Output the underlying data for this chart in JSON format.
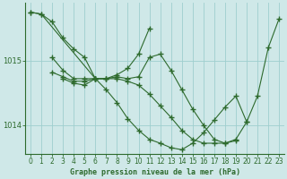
{
  "title": "Graphe pression niveau de la mer (hPa)",
  "background_color": "#cfe8e8",
  "plot_bg_color": "#cfe8e8",
  "line_color": "#2d6a2d",
  "grid_color": "#9ecece",
  "xlim": [
    -0.5,
    23.5
  ],
  "ylim": [
    1013.55,
    1015.9
  ],
  "yticks": [
    1014,
    1015
  ],
  "xticks": [
    0,
    1,
    2,
    3,
    4,
    5,
    6,
    7,
    8,
    9,
    10,
    11,
    12,
    13,
    14,
    15,
    16,
    17,
    18,
    19,
    20,
    21,
    22,
    23
  ],
  "series": [
    {
      "x": [
        0,
        1,
        2,
        3,
        4,
        5,
        6,
        7,
        8,
        9,
        10,
        11
      ],
      "y": [
        1015.75,
        1015.72,
        1015.6,
        1015.35,
        1015.18,
        1015.05,
        1014.72,
        1014.72,
        1014.78,
        1014.88,
        1015.1,
        1015.5
      ]
    },
    {
      "x": [
        2,
        3,
        4,
        5,
        6,
        7,
        8,
        9,
        10,
        11,
        12,
        13,
        14,
        15,
        16,
        17,
        18,
        19
      ],
      "y": [
        1015.05,
        1014.85,
        1014.72,
        1014.72,
        1014.72,
        1014.72,
        1014.72,
        1014.68,
        1014.62,
        1014.48,
        1014.3,
        1014.12,
        1013.92,
        1013.78,
        1013.72,
        1013.72,
        1013.72,
        1013.76
      ]
    },
    {
      "x": [
        2,
        3,
        4,
        5,
        6,
        7,
        8,
        9,
        10,
        11,
        12,
        13,
        14,
        15,
        16,
        17,
        18,
        19,
        20,
        21,
        22,
        23
      ],
      "y": [
        1014.82,
        1014.75,
        1014.68,
        1014.68,
        1014.72,
        1014.72,
        1014.75,
        1014.72,
        1014.75,
        1015.05,
        1015.1,
        1014.85,
        1014.55,
        1014.25,
        1014.0,
        1013.78,
        1013.72,
        1013.78,
        1014.05,
        1014.45,
        1015.2,
        1015.65
      ]
    },
    {
      "x": [
        0,
        1,
        6
      ],
      "y": [
        1015.75,
        1015.72,
        1014.72
      ]
    },
    {
      "x": [
        3,
        4,
        5,
        6,
        7,
        8,
        9,
        10,
        11,
        12,
        13,
        14,
        15,
        16,
        17,
        18,
        19,
        20
      ],
      "y": [
        1014.72,
        1014.65,
        1014.62,
        1014.72,
        1014.55,
        1014.35,
        1014.1,
        1013.92,
        1013.78,
        1013.72,
        1013.65,
        1013.62,
        1013.72,
        1013.88,
        1014.08,
        1014.28,
        1014.45,
        1014.05
      ]
    }
  ]
}
